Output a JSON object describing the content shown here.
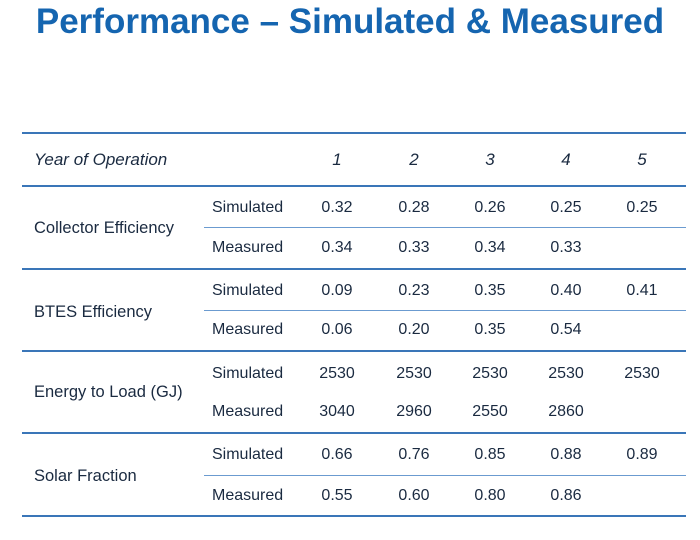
{
  "title": "Performance – Simulated & Measured",
  "table": {
    "header": {
      "label": "Year of Operation",
      "years": [
        "1",
        "2",
        "3",
        "4",
        "5"
      ]
    },
    "groups": [
      {
        "label": "Collector Efficiency",
        "rows": [
          {
            "type": "Simulated",
            "values": [
              "0.32",
              "0.28",
              "0.26",
              "0.25",
              "0.25"
            ]
          },
          {
            "type": "Measured",
            "values": [
              "0.34",
              "0.33",
              "0.34",
              "0.33",
              ""
            ]
          }
        ]
      },
      {
        "label": "BTES Efficiency",
        "rows": [
          {
            "type": "Simulated",
            "values": [
              "0.09",
              "0.23",
              "0.35",
              "0.40",
              "0.41"
            ]
          },
          {
            "type": "Measured",
            "values": [
              "0.06",
              "0.20",
              "0.35",
              "0.54",
              ""
            ]
          }
        ]
      },
      {
        "label": "Energy to Load (GJ)",
        "rows": [
          {
            "type": "Simulated",
            "values": [
              "2530",
              "2530",
              "2530",
              "2530",
              "2530"
            ]
          },
          {
            "type": "Measured",
            "values": [
              "3040",
              "2960",
              "2550",
              "2860",
              ""
            ]
          }
        ]
      },
      {
        "label": "Solar Fraction",
        "rows": [
          {
            "type": "Simulated",
            "values": [
              "0.66",
              "0.76",
              "0.85",
              "0.88",
              "0.89"
            ]
          },
          {
            "type": "Measured",
            "values": [
              "0.55",
              "0.60",
              "0.80",
              "0.86",
              ""
            ]
          }
        ]
      }
    ]
  }
}
